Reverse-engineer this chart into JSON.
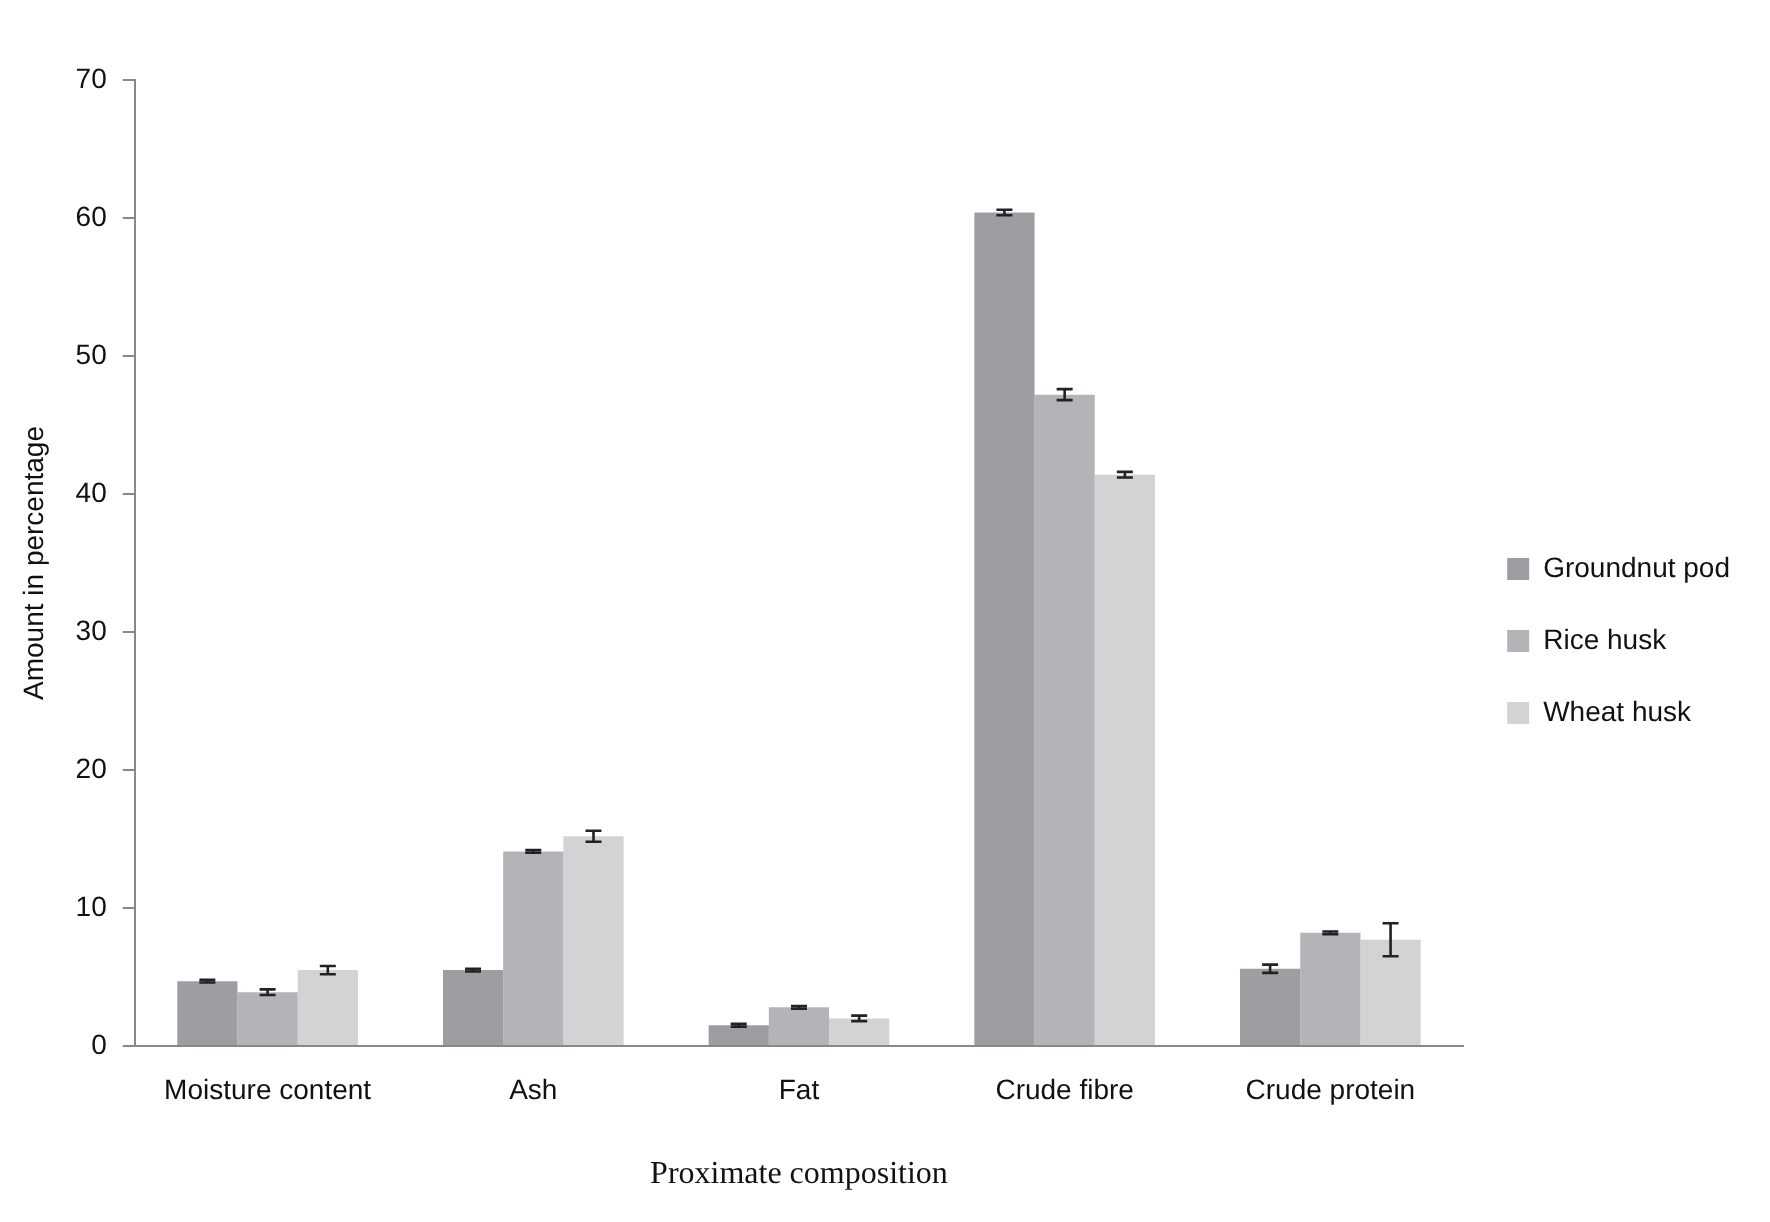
{
  "chart_data": {
    "type": "bar",
    "xlabel": "Proximate composition",
    "ylabel": "Amount in percentage",
    "categories": [
      "Moisture content",
      "Ash",
      "Fat",
      "Crude fibre",
      "Crude protein"
    ],
    "series": [
      {
        "name": "Groundnut pod",
        "color": "#9d9ea2",
        "values": [
          4.7,
          5.5,
          1.5,
          60.4,
          5.6
        ],
        "errors": [
          0.1,
          0.1,
          0.1,
          0.2,
          0.3
        ]
      },
      {
        "name": "Rice husk",
        "color": "#b3b4b7",
        "values": [
          3.9,
          14.1,
          2.8,
          47.2,
          8.2
        ],
        "errors": [
          0.2,
          0.1,
          0.1,
          0.4,
          0.1
        ]
      },
      {
        "name": "Wheat husk",
        "color": "#d2d3d5",
        "values": [
          5.5,
          15.2,
          2.0,
          41.4,
          7.7
        ],
        "errors": [
          0.3,
          0.4,
          0.2,
          0.2,
          1.2
        ]
      }
    ],
    "ylim": [
      0,
      70
    ],
    "yticks": [
      0,
      10,
      20,
      30,
      40,
      50,
      60,
      70
    ],
    "grid": false,
    "legend": "right"
  }
}
